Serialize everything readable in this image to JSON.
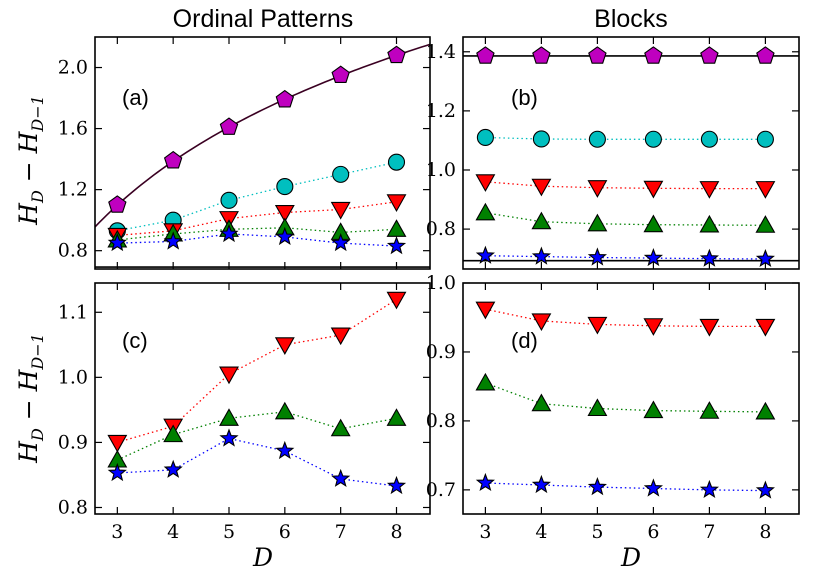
{
  "column_titles": [
    "Ordinal Patterns",
    "Blocks"
  ],
  "y_axis_label": "H_D − H_{D−1}",
  "x_axis_label": "D",
  "colors": {
    "pentagon": "#bf00bf",
    "circle": "#00bfbf",
    "triangle_down": "#ff0000",
    "triangle_up": "#008000",
    "star": "#0000ff",
    "curve": "#3a0022",
    "reference_line": "#000000"
  },
  "chart_data": [
    {
      "panel": "(a)",
      "type": "line",
      "title": "Ordinal Patterns",
      "xlim": [
        2.6,
        8.6
      ],
      "ylim": [
        0.68,
        2.2
      ],
      "xticks": [
        3,
        4,
        5,
        6,
        7,
        8
      ],
      "yticks": [
        0.8,
        1.2,
        1.6,
        2.0
      ],
      "ytick_labels": [
        "0.8",
        "1.2",
        "1.6",
        "2.0"
      ],
      "x": [
        3,
        4,
        5,
        6,
        7,
        8
      ],
      "series": [
        {
          "marker": "pentagon",
          "color": "#bf00bf",
          "linestyle": "none",
          "values": [
            1.1,
            1.39,
            1.61,
            1.79,
            1.95,
            2.08
          ]
        },
        {
          "marker": "circle",
          "color": "#00bfbf",
          "linestyle": "dotted",
          "values": [
            0.93,
            1.0,
            1.13,
            1.22,
            1.3,
            1.38
          ]
        },
        {
          "marker": "triangle_down",
          "color": "#ff0000",
          "linestyle": "dotted",
          "values": [
            0.9,
            0.93,
            1.01,
            1.05,
            1.07,
            1.12
          ]
        },
        {
          "marker": "triangle_up",
          "color": "#008000",
          "linestyle": "dotted",
          "values": [
            0.87,
            0.91,
            0.94,
            0.95,
            0.92,
            0.94
          ]
        },
        {
          "marker": "star",
          "color": "#0000ff",
          "linestyle": "dotted",
          "values": [
            0.85,
            0.86,
            0.91,
            0.89,
            0.85,
            0.83
          ]
        }
      ],
      "curve": {
        "function": "ln(D!) - ln((D-1)!) = ln(D)",
        "color": "#3a0022"
      },
      "reference_line": {
        "y": 0.693,
        "color": "#000000"
      }
    },
    {
      "panel": "(b)",
      "type": "line",
      "title": "Blocks",
      "xlim": [
        2.6,
        8.6
      ],
      "ylim": [
        0.665,
        1.45
      ],
      "xticks": [
        3,
        4,
        5,
        6,
        7,
        8
      ],
      "yticks": [
        0.8,
        1.0,
        1.2,
        1.4
      ],
      "ytick_labels": [
        "0.8",
        "1.0",
        "1.2",
        "1.4"
      ],
      "x": [
        3,
        4,
        5,
        6,
        7,
        8
      ],
      "series": [
        {
          "marker": "pentagon",
          "color": "#bf00bf",
          "linestyle": "none",
          "values": [
            1.386,
            1.386,
            1.386,
            1.386,
            1.386,
            1.386
          ]
        },
        {
          "marker": "circle",
          "color": "#00bfbf",
          "linestyle": "dotted",
          "values": [
            1.11,
            1.105,
            1.104,
            1.104,
            1.104,
            1.104
          ]
        },
        {
          "marker": "triangle_down",
          "color": "#ff0000",
          "linestyle": "dotted",
          "values": [
            0.96,
            0.945,
            0.94,
            0.938,
            0.937,
            0.937
          ]
        },
        {
          "marker": "triangle_up",
          "color": "#008000",
          "linestyle": "dotted",
          "values": [
            0.855,
            0.825,
            0.818,
            0.815,
            0.814,
            0.813
          ]
        },
        {
          "marker": "star",
          "color": "#0000ff",
          "linestyle": "dotted",
          "values": [
            0.71,
            0.707,
            0.704,
            0.702,
            0.7,
            0.699
          ]
        }
      ],
      "hlines": [
        {
          "y": 1.386,
          "color": "#000000"
        },
        {
          "y": 0.693,
          "color": "#000000"
        }
      ]
    },
    {
      "panel": "(c)",
      "type": "line",
      "xlim": [
        2.6,
        8.6
      ],
      "ylim": [
        0.79,
        1.145
      ],
      "xticks": [
        3,
        4,
        5,
        6,
        7,
        8
      ],
      "yticks": [
        0.8,
        0.9,
        1.0,
        1.1
      ],
      "ytick_labels": [
        "0.8",
        "0.9",
        "1.0",
        "1.1"
      ],
      "xlabel": "D",
      "x": [
        3,
        4,
        5,
        6,
        7,
        8
      ],
      "series": [
        {
          "marker": "triangle_down",
          "color": "#ff0000",
          "linestyle": "dotted",
          "values": [
            0.9,
            0.925,
            1.005,
            1.05,
            1.065,
            1.12
          ]
        },
        {
          "marker": "triangle_up",
          "color": "#008000",
          "linestyle": "dotted",
          "values": [
            0.873,
            0.912,
            0.937,
            0.947,
            0.921,
            0.937
          ]
        },
        {
          "marker": "star",
          "color": "#0000ff",
          "linestyle": "dotted",
          "values": [
            0.853,
            0.858,
            0.906,
            0.887,
            0.844,
            0.833
          ]
        }
      ]
    },
    {
      "panel": "(d)",
      "type": "line",
      "xlim": [
        2.6,
        8.6
      ],
      "ylim": [
        0.665,
        1.0
      ],
      "xticks": [
        3,
        4,
        5,
        6,
        7,
        8
      ],
      "yticks": [
        0.7,
        0.8,
        0.9,
        1.0
      ],
      "ytick_labels": [
        "0.7",
        "0.8",
        "0.9",
        "1.0"
      ],
      "xlabel": "D",
      "x": [
        3,
        4,
        5,
        6,
        7,
        8
      ],
      "series": [
        {
          "marker": "triangle_down",
          "color": "#ff0000",
          "linestyle": "dotted",
          "values": [
            0.962,
            0.945,
            0.94,
            0.938,
            0.937,
            0.937
          ]
        },
        {
          "marker": "triangle_up",
          "color": "#008000",
          "linestyle": "dotted",
          "values": [
            0.855,
            0.825,
            0.818,
            0.815,
            0.814,
            0.813
          ]
        },
        {
          "marker": "star",
          "color": "#0000ff",
          "linestyle": "dotted",
          "values": [
            0.71,
            0.707,
            0.704,
            0.702,
            0.7,
            0.699
          ]
        }
      ]
    }
  ]
}
